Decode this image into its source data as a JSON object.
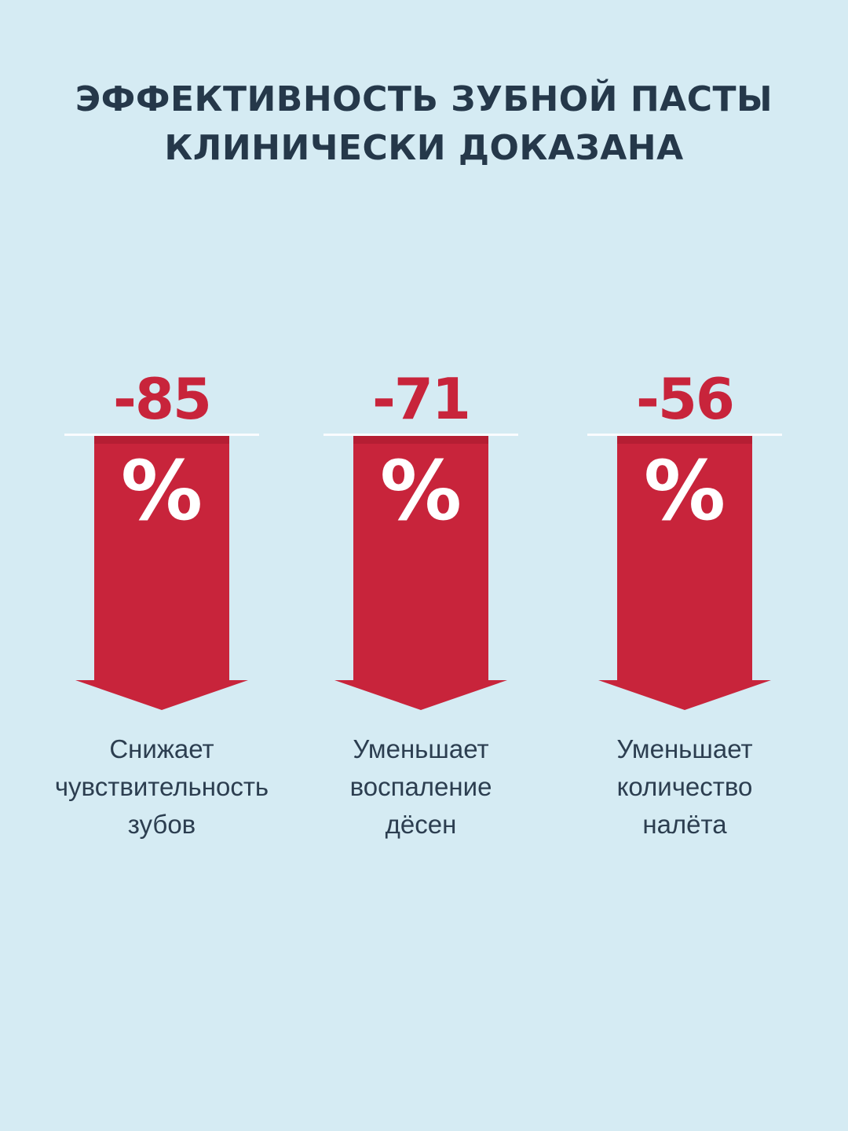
{
  "title": {
    "line1": "ЭФФЕКТИВНОСТЬ ЗУБНОЙ ПАСТЫ",
    "line2": "КЛИНИЧЕСКИ ДОКАЗАНА"
  },
  "stats": [
    {
      "value": "-85",
      "percent_sign": "%",
      "caption": [
        "Снижает",
        "чувствительность",
        "зубов"
      ]
    },
    {
      "value": "-71",
      "percent_sign": "%",
      "caption": [
        "Уменьшает",
        "воспаление",
        "дёсен"
      ]
    },
    {
      "value": "-56",
      "percent_sign": "%",
      "caption": [
        "Уменьшает",
        "количество",
        "налёта"
      ]
    }
  ],
  "colors": {
    "background": "#d5ebf3",
    "accent_red": "#c8243b",
    "title_text": "#25384a",
    "caption_text": "#2c3e50"
  },
  "icons": {
    "arrow": "down-arrow-icon"
  }
}
